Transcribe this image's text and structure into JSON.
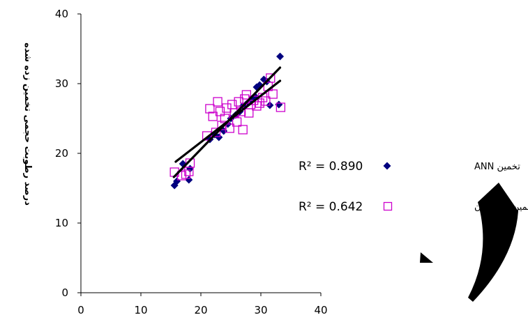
{
  "chart_data": {
    "type": "scatter",
    "ylabel": "درصد رطوبت حجمی تخمین زده شده",
    "xlim": [
      0,
      40
    ],
    "ylim": [
      0,
      40
    ],
    "xticks": [
      "0",
      "10",
      "20",
      "30",
      "40"
    ],
    "yticks": [
      "0",
      "10",
      "20",
      "30",
      "40"
    ],
    "grid": false,
    "legend_position": "right",
    "series": [
      {
        "name": "تخمین ANN",
        "marker": "diamond",
        "color": "#00007f",
        "r2_label": "R² = 0.890",
        "trendline": [
          [
            15.5,
            16.6
          ],
          [
            33.2,
            32.3
          ]
        ],
        "points": [
          [
            15.6,
            15.4
          ],
          [
            16.0,
            16.0
          ],
          [
            17.0,
            18.5
          ],
          [
            18.0,
            16.2
          ],
          [
            18.2,
            17.8
          ],
          [
            21.5,
            22.0
          ],
          [
            22.3,
            22.7
          ],
          [
            23.0,
            22.3
          ],
          [
            23.8,
            23.2
          ],
          [
            24.5,
            24.2
          ],
          [
            25.0,
            25.0
          ],
          [
            25.8,
            25.5
          ],
          [
            26.5,
            26.0
          ],
          [
            27.0,
            26.8
          ],
          [
            27.5,
            27.0
          ],
          [
            28.0,
            27.3
          ],
          [
            28.5,
            27.8
          ],
          [
            29.0,
            28.2
          ],
          [
            29.3,
            29.5
          ],
          [
            29.8,
            29.8
          ],
          [
            30.5,
            30.6
          ],
          [
            31.0,
            30.3
          ],
          [
            31.5,
            26.9
          ],
          [
            33.0,
            27.0
          ],
          [
            33.2,
            33.9
          ]
        ]
      },
      {
        "name": "تخمین رگرسیون",
        "marker": "square-open",
        "color": "#cc00cc",
        "r2_label": "R² = 0.642",
        "trendline": [
          [
            15.8,
            18.8
          ],
          [
            33.2,
            30.4
          ]
        ],
        "points": [
          [
            15.6,
            17.3
          ],
          [
            16.8,
            16.8
          ],
          [
            17.5,
            17.0
          ],
          [
            18.0,
            17.4
          ],
          [
            18.2,
            18.6
          ],
          [
            21.0,
            22.5
          ],
          [
            21.5,
            26.4
          ],
          [
            22.0,
            25.3
          ],
          [
            22.5,
            23.0
          ],
          [
            22.8,
            27.4
          ],
          [
            23.2,
            26.0
          ],
          [
            23.5,
            24.0
          ],
          [
            24.0,
            25.0
          ],
          [
            24.3,
            26.5
          ],
          [
            24.8,
            23.6
          ],
          [
            25.2,
            27.0
          ],
          [
            25.6,
            25.8
          ],
          [
            26.0,
            24.5
          ],
          [
            26.3,
            27.4
          ],
          [
            26.7,
            26.0
          ],
          [
            27.0,
            23.4
          ],
          [
            27.3,
            27.8
          ],
          [
            27.6,
            28.4
          ],
          [
            28.0,
            25.8
          ],
          [
            28.3,
            27.0
          ],
          [
            28.8,
            27.6
          ],
          [
            29.3,
            26.8
          ],
          [
            29.8,
            27.2
          ],
          [
            30.3,
            28.0
          ],
          [
            30.8,
            27.5
          ],
          [
            31.2,
            29.6
          ],
          [
            31.6,
            30.8
          ],
          [
            32.0,
            28.5
          ],
          [
            33.3,
            26.6
          ]
        ]
      }
    ]
  }
}
